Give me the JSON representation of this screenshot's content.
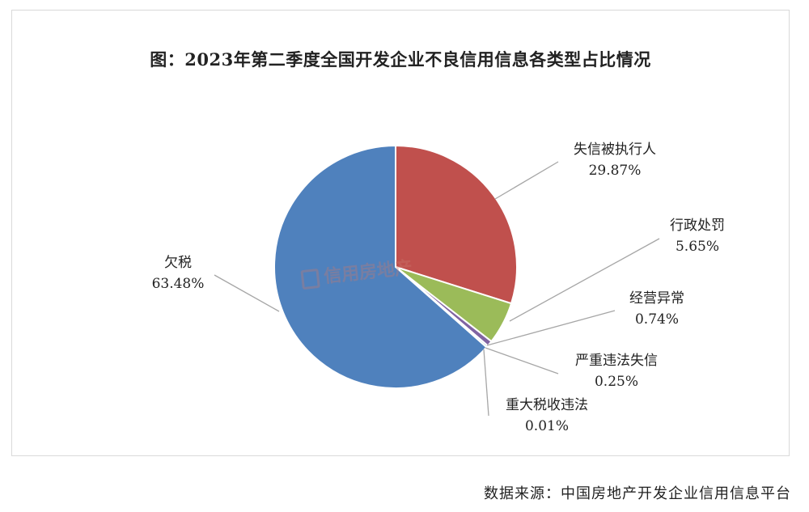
{
  "chart_data": {
    "type": "pie",
    "title": "图：2023年第二季度全国开发企业不良信用信息各类型占比情况",
    "slices": [
      {
        "name": "失信被执行人",
        "value": 29.87,
        "label": "29.87%",
        "color": "#c0504d",
        "label_side": "right"
      },
      {
        "name": "行政处罚",
        "value": 5.65,
        "label": "5.65%",
        "color": "#9bbb59",
        "label_side": "right"
      },
      {
        "name": "经营异常",
        "value": 0.74,
        "label": "0.74%",
        "color": "#8064a2",
        "label_side": "right"
      },
      {
        "name": "严重违法失信",
        "value": 0.25,
        "label": "0.25%",
        "color": "#4bacc6",
        "label_side": "right"
      },
      {
        "name": "重大税收违法",
        "value": 0.01,
        "label": "0.01%",
        "color": "#f79646",
        "label_side": "right"
      },
      {
        "name": "欠税",
        "value": 63.48,
        "label": "63.48%",
        "color": "#4f81bd",
        "label_side": "left"
      }
    ]
  },
  "source": "数据来源：中国房地产开发企业信用信息平台",
  "watermark": "信用房地产"
}
